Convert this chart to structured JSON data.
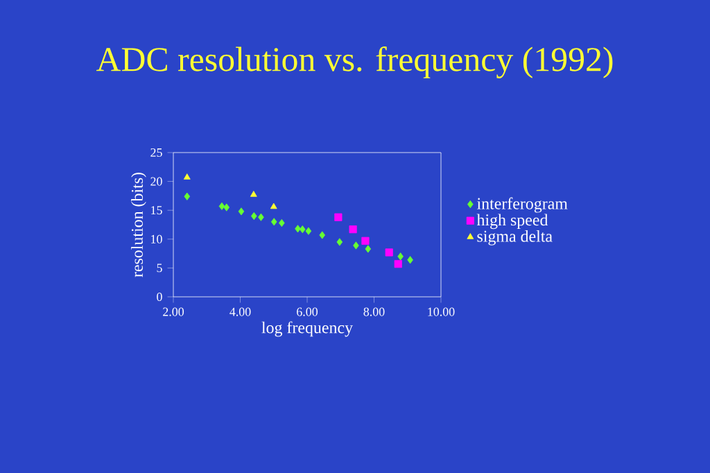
{
  "chart_data": {
    "type": "scatter",
    "title": "ADC resolution vs. frequency (1992)",
    "xlabel": "log frequency",
    "ylabel": "resolution (bits)",
    "xlim": [
      2,
      10
    ],
    "xticks": [
      {
        "value": 2,
        "label": "2.00"
      },
      {
        "value": 4,
        "label": "4.00"
      },
      {
        "value": 6,
        "label": "6.00"
      },
      {
        "value": 8,
        "label": "8.00"
      },
      {
        "value": 10,
        "label": "10.00"
      }
    ],
    "ylim": [
      0,
      25
    ],
    "yticks": [
      0,
      5,
      10,
      15,
      20,
      25
    ],
    "legend": "right",
    "series": [
      {
        "name": "interferogram",
        "color": "#66ff33",
        "marker": "diamond",
        "x": [
          2.41,
          3.45,
          3.59,
          4.03,
          4.41,
          4.62,
          5.01,
          5.24,
          5.72,
          5.86,
          6.04,
          6.45,
          6.97,
          7.46,
          7.82,
          8.79,
          9.08
        ],
        "values": [
          17.4,
          15.7,
          15.5,
          14.8,
          14.0,
          13.8,
          13.0,
          12.8,
          11.8,
          11.7,
          11.4,
          10.7,
          9.5,
          8.9,
          8.3,
          7.0,
          6.4
        ]
      },
      {
        "name": "high speed",
        "color": "#ff00ff",
        "marker": "square",
        "x": [
          6.93,
          7.37,
          7.74,
          8.45,
          8.72
        ],
        "values": [
          13.8,
          11.7,
          9.7,
          7.7,
          5.7
        ]
      },
      {
        "name": "sigma delta",
        "color": "#ffff33",
        "marker": "triangle",
        "x": [
          2.41,
          4.4,
          5.0
        ],
        "values": [
          20.7,
          17.7,
          15.6
        ]
      }
    ]
  }
}
